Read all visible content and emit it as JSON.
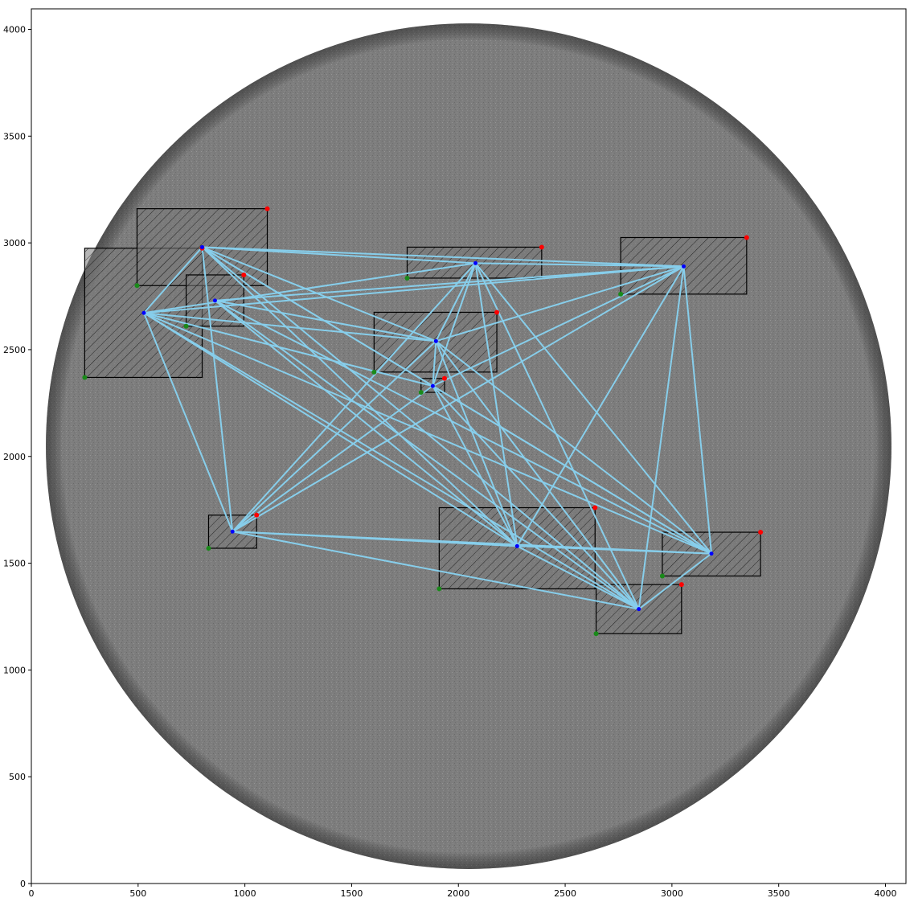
{
  "chart_data": {
    "type": "scatter",
    "title": "",
    "xlabel": "",
    "ylabel": "",
    "xlim": [
      0,
      4096
    ],
    "ylim": [
      0,
      4096
    ],
    "xticks": [
      0,
      500,
      1000,
      1500,
      2000,
      2500,
      3000,
      3500,
      4000
    ],
    "yticks": [
      0,
      500,
      1000,
      1500,
      2000,
      2500,
      3000,
      3500,
      4000
    ],
    "background": {
      "kind": "solar-disk-magnetogram",
      "center": [
        2048,
        2048
      ],
      "radius": 1980,
      "disk_color": "#808080"
    },
    "regions": [
      {
        "x0": 250,
        "y0": 2370,
        "x1": 800,
        "y1": 2975,
        "center": [
          527,
          2672
        ]
      },
      {
        "x0": 495,
        "y0": 2800,
        "x1": 1105,
        "y1": 3160,
        "center": [
          800,
          2980
        ]
      },
      {
        "x0": 725,
        "y0": 2610,
        "x1": 995,
        "y1": 2850,
        "center": [
          860,
          2730
        ]
      },
      {
        "x0": 1760,
        "y0": 2835,
        "x1": 2390,
        "y1": 2980,
        "center": [
          2080,
          2905
        ]
      },
      {
        "x0": 2760,
        "y0": 2760,
        "x1": 3350,
        "y1": 3025,
        "center": [
          3055,
          2890
        ]
      },
      {
        "x0": 1605,
        "y0": 2395,
        "x1": 2180,
        "y1": 2675,
        "center": [
          1895,
          2540
        ]
      },
      {
        "x0": 1825,
        "y0": 2300,
        "x1": 1935,
        "y1": 2365,
        "center": [
          1880,
          2330
        ]
      },
      {
        "x0": 830,
        "y0": 1570,
        "x1": 1055,
        "y1": 1725,
        "center": [
          942,
          1648
        ]
      },
      {
        "x0": 1910,
        "y0": 1380,
        "x1": 2640,
        "y1": 1760,
        "center": [
          2275,
          1580
        ]
      },
      {
        "x0": 2955,
        "y0": 1440,
        "x1": 3415,
        "y1": 1645,
        "center": [
          3185,
          1545
        ]
      },
      {
        "x0": 2645,
        "y0": 1170,
        "x1": 3045,
        "y1": 1400,
        "center": [
          2845,
          1285
        ]
      }
    ],
    "connections": [
      [
        0,
        1
      ],
      [
        0,
        3
      ],
      [
        0,
        4
      ],
      [
        0,
        5
      ],
      [
        0,
        6
      ],
      [
        0,
        7
      ],
      [
        0,
        8
      ],
      [
        0,
        9
      ],
      [
        0,
        10
      ],
      [
        1,
        3
      ],
      [
        1,
        4
      ],
      [
        1,
        5
      ],
      [
        1,
        6
      ],
      [
        1,
        7
      ],
      [
        1,
        8
      ],
      [
        1,
        9
      ],
      [
        1,
        10
      ],
      [
        2,
        4
      ],
      [
        2,
        5
      ],
      [
        2,
        8
      ],
      [
        2,
        9
      ],
      [
        2,
        10
      ],
      [
        3,
        4
      ],
      [
        3,
        5
      ],
      [
        3,
        6
      ],
      [
        3,
        7
      ],
      [
        3,
        8
      ],
      [
        3,
        9
      ],
      [
        3,
        10
      ],
      [
        4,
        5
      ],
      [
        4,
        6
      ],
      [
        4,
        7
      ],
      [
        4,
        8
      ],
      [
        4,
        9
      ],
      [
        4,
        10
      ],
      [
        5,
        6
      ],
      [
        5,
        7
      ],
      [
        5,
        8
      ],
      [
        5,
        9
      ],
      [
        5,
        10
      ],
      [
        6,
        7
      ],
      [
        6,
        8
      ],
      [
        6,
        9
      ],
      [
        6,
        10
      ],
      [
        7,
        8
      ],
      [
        7,
        9
      ],
      [
        7,
        10
      ],
      [
        8,
        9
      ],
      [
        8,
        10
      ],
      [
        9,
        10
      ]
    ],
    "colors": {
      "corner_low": "#1a8a1a",
      "corner_high": "#ff0000",
      "center": "#0000ff",
      "line": "#87ceeb",
      "box_edge": "#000000"
    }
  }
}
